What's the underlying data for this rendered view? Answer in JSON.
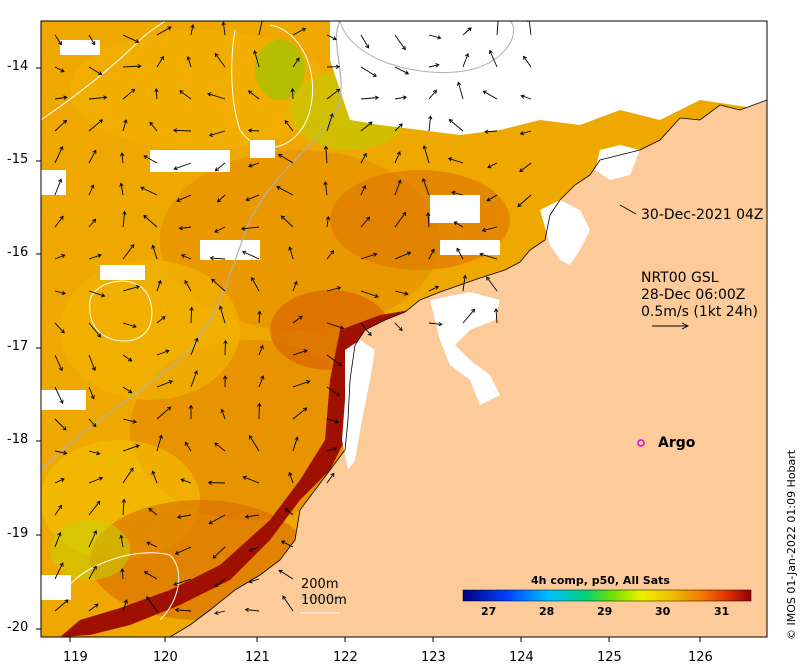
{
  "map": {
    "x_ticks": [
      "119",
      "120",
      "121",
      "122",
      "123",
      "124",
      "125",
      "126"
    ],
    "y_ticks": [
      "-14",
      "-15",
      "-16",
      "-17",
      "-18",
      "-19",
      "-20"
    ],
    "annotations": {
      "timestamp": "30-Dec-2021 04Z",
      "current_source": "NRT00 GSL",
      "current_time": "28-Dec 06:00Z",
      "current_scale": "0.5m/s (1kt 24h)",
      "argo_label": "Argo"
    },
    "depth_contours": {
      "shallow": "200m",
      "deep": "1000m"
    },
    "colorbar": {
      "title": "4h comp, p50, All Sats",
      "ticks": [
        "27",
        "28",
        "29",
        "30",
        "31"
      ]
    },
    "credit": "© IMOS 01-Jan-2022 01:09 Hobart",
    "colors": {
      "land": "#fccb99",
      "sea_warm": "#f0a000",
      "sea_hot": "#a01000",
      "no_data": "#ffffff",
      "argo_marker": "#e000e0"
    }
  }
}
